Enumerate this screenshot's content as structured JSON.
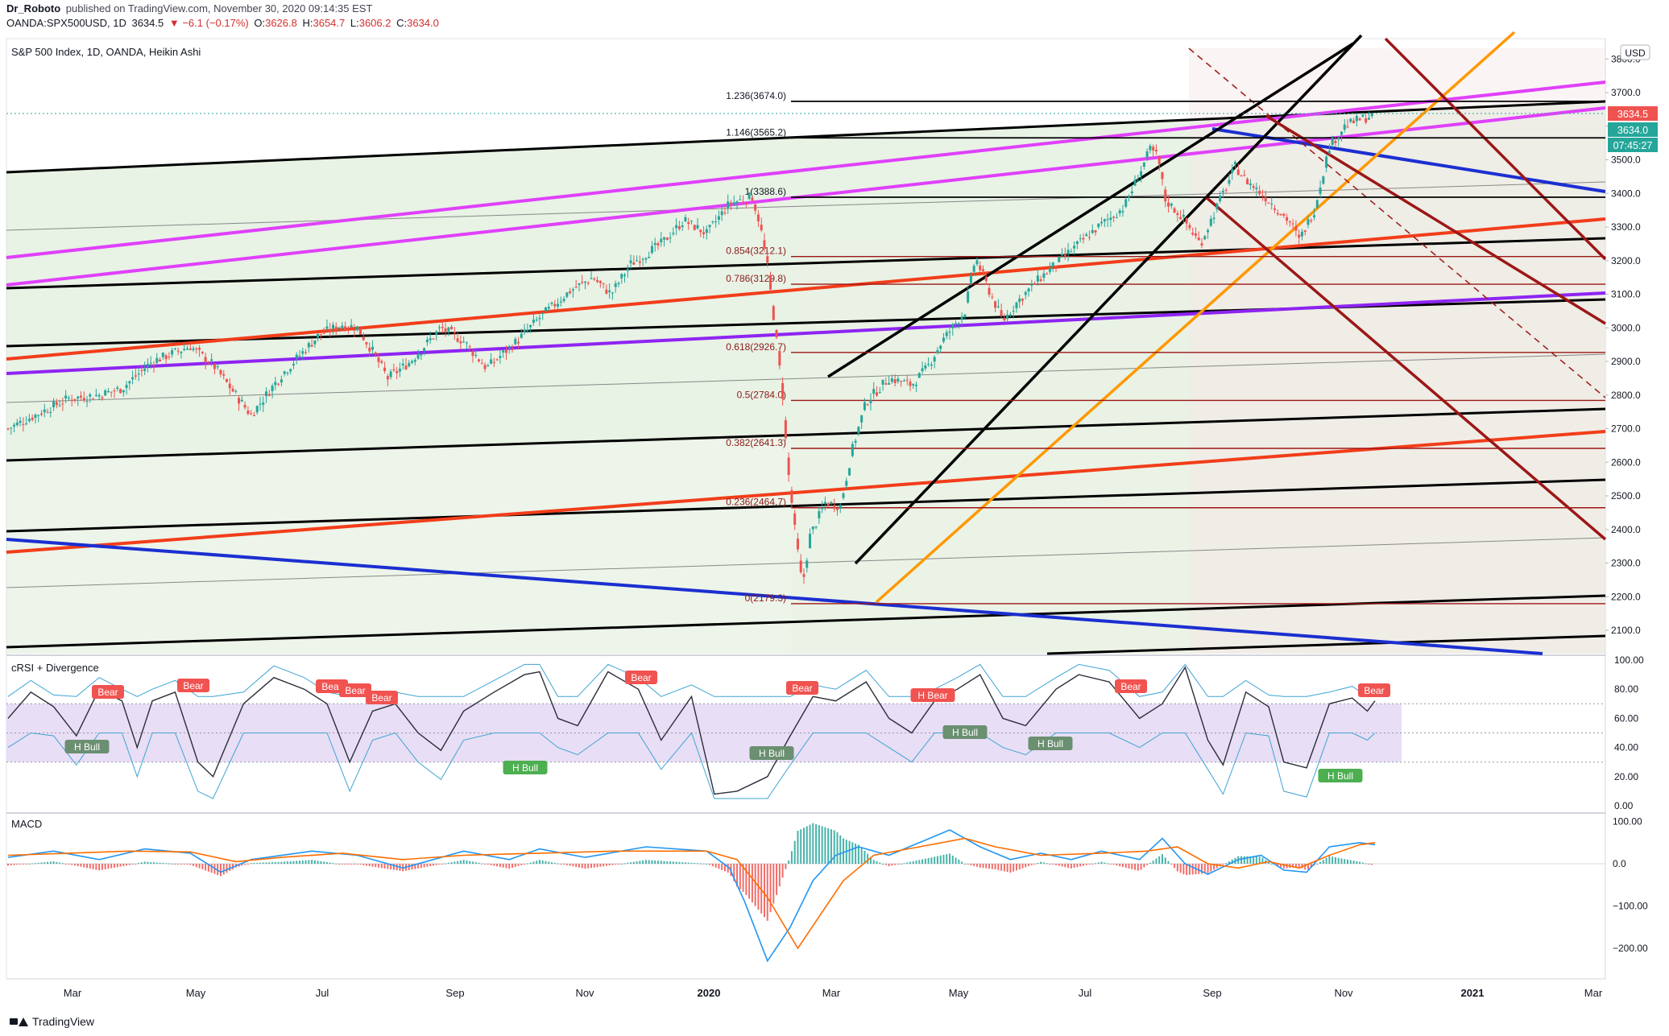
{
  "header": {
    "user": "Dr_Roboto",
    "published": "published on TradingView.com, November 30, 2020 09:14:35 EST",
    "symbol": "OANDA:SPX500USD, 1D",
    "last": "3634.5",
    "change": "▼ −6.1 (−0.17%)",
    "o_label": "O:",
    "o": "3626.8",
    "h_label": "H:",
    "h": "3654.7",
    "l_label": "L:",
    "l": "3606.2",
    "c_label": "C:",
    "c": "3634.0"
  },
  "legend": {
    "main": "S&P 500 Index, 1D, OANDA, Heikin Ashi",
    "crsi": "cRSI + Divergence",
    "macd": "MACD"
  },
  "currency": "USD",
  "price_tags": {
    "last": "3634.5",
    "close": "3634.0",
    "countdown": "07:45:27"
  },
  "colors": {
    "up": "#26a69a",
    "down": "#ef5350",
    "magenta": "#e040fb",
    "red": "#f23d1a",
    "purple": "#8e24f2",
    "blue": "#1b2fd1",
    "orange": "#ff9800",
    "darkred": "#9c1717",
    "channel_fill": "#d6e7cf",
    "crsi_band": "#e2d6f2",
    "bear": "#f05350",
    "bull": "#4caf50"
  },
  "footer": {
    "brand": "TradingView"
  },
  "chart_data": [
    {
      "type": "candlestick",
      "title": "S&P 500 Index, 1D, OANDA, Heikin Ashi",
      "x_ticks": [
        "Mar",
        "May",
        "Jul",
        "Sep",
        "Nov",
        "2020",
        "Mar",
        "May",
        "Jul",
        "Sep",
        "Nov",
        "2021",
        "Mar"
      ],
      "y_ticks": [
        "2100.0",
        "2200.0",
        "2300.0",
        "2400.0",
        "2500.0",
        "2600.0",
        "2700.0",
        "2800.0",
        "2900.0",
        "3000.0",
        "3100.0",
        "3200.0",
        "3300.0",
        "3400.0",
        "3500.0",
        "3600.0",
        "3700.0",
        "3800.0"
      ],
      "ylim": [
        2055,
        3890
      ],
      "fib_levels": [
        {
          "label": "1.236(3674.0)",
          "value": 3674.0
        },
        {
          "label": "1.146(3565.2)",
          "value": 3565.2
        },
        {
          "label": "1(3388.6)",
          "value": 3388.6
        },
        {
          "label": "0.854(3212.1)",
          "value": 3212.1
        },
        {
          "label": "0.786(3129.8)",
          "value": 3129.8
        },
        {
          "label": "0.618(2926.7)",
          "value": 2926.7
        },
        {
          "label": "0.5(2784.0)",
          "value": 2784.0
        },
        {
          "label": "0.382(2641.3)",
          "value": 2641.3
        },
        {
          "label": "0.236(2464.7)",
          "value": 2464.7
        },
        {
          "label": "0(2179.3)",
          "value": 2179.3
        }
      ],
      "close_path": [
        [
          0,
          2700
        ],
        [
          40,
          2790
        ],
        [
          60,
          2800
        ],
        [
          75,
          2820
        ],
        [
          95,
          2900
        ],
        [
          120,
          2945
        ],
        [
          135,
          2890
        ],
        [
          160,
          2740
        ],
        [
          180,
          2860
        ],
        [
          205,
          2980
        ],
        [
          220,
          3010
        ],
        [
          230,
          3000
        ],
        [
          240,
          2930
        ],
        [
          250,
          2850
        ],
        [
          265,
          2900
        ],
        [
          285,
          3000
        ],
        [
          300,
          2960
        ],
        [
          315,
          2880
        ],
        [
          335,
          2960
        ],
        [
          350,
          3030
        ],
        [
          370,
          3110
        ],
        [
          385,
          3150
        ],
        [
          397,
          3100
        ],
        [
          410,
          3190
        ],
        [
          430,
          3250
        ],
        [
          445,
          3320
        ],
        [
          460,
          3280
        ],
        [
          475,
          3370
        ],
        [
          490,
          3390
        ],
        [
          495,
          3310
        ],
        [
          500,
          3180
        ],
        [
          505,
          3000
        ],
        [
          510,
          2800
        ],
        [
          513,
          2600
        ],
        [
          518,
          2400
        ],
        [
          523,
          2230
        ],
        [
          528,
          2380
        ],
        [
          538,
          2480
        ],
        [
          548,
          2470
        ],
        [
          556,
          2640
        ],
        [
          565,
          2780
        ],
        [
          580,
          2850
        ],
        [
          595,
          2830
        ],
        [
          605,
          2880
        ],
        [
          615,
          2960
        ],
        [
          630,
          3050
        ],
        [
          637,
          3210
        ],
        [
          645,
          3120
        ],
        [
          655,
          3020
        ],
        [
          665,
          3080
        ],
        [
          680,
          3150
        ],
        [
          695,
          3210
        ],
        [
          715,
          3290
        ],
        [
          735,
          3360
        ],
        [
          752,
          3530
        ],
        [
          757,
          3510
        ],
        [
          762,
          3380
        ],
        [
          773,
          3330
        ],
        [
          785,
          3250
        ],
        [
          800,
          3400
        ],
        [
          808,
          3480
        ],
        [
          815,
          3440
        ],
        [
          830,
          3380
        ],
        [
          845,
          3310
        ],
        [
          850,
          3260
        ],
        [
          860,
          3350
        ],
        [
          870,
          3540
        ],
        [
          880,
          3600
        ],
        [
          890,
          3620
        ],
        [
          900,
          3634
        ]
      ],
      "series_note_none": ""
    },
    {
      "type": "line",
      "title": "cRSI + Divergence",
      "y_ticks": [
        "100.00",
        "80.00",
        "60.00",
        "40.00",
        "20.00",
        "0.00"
      ],
      "ylim": [
        0,
        100
      ],
      "band": [
        30,
        70
      ],
      "crsi_path": [
        [
          0,
          60
        ],
        [
          15,
          78
        ],
        [
          30,
          68
        ],
        [
          45,
          48
        ],
        [
          60,
          80
        ],
        [
          75,
          72
        ],
        [
          85,
          40
        ],
        [
          95,
          72
        ],
        [
          110,
          78
        ],
        [
          125,
          30
        ],
        [
          135,
          20
        ],
        [
          155,
          70
        ],
        [
          175,
          88
        ],
        [
          195,
          80
        ],
        [
          210,
          70
        ],
        [
          225,
          30
        ],
        [
          240,
          65
        ],
        [
          255,
          70
        ],
        [
          270,
          50
        ],
        [
          285,
          38
        ],
        [
          300,
          65
        ],
        [
          320,
          78
        ],
        [
          340,
          90
        ],
        [
          350,
          92
        ],
        [
          362,
          60
        ],
        [
          375,
          55
        ],
        [
          395,
          92
        ],
        [
          415,
          80
        ],
        [
          430,
          45
        ],
        [
          450,
          75
        ],
        [
          465,
          8
        ],
        [
          480,
          10
        ],
        [
          500,
          20
        ],
        [
          515,
          48
        ],
        [
          530,
          75
        ],
        [
          545,
          72
        ],
        [
          565,
          85
        ],
        [
          580,
          60
        ],
        [
          595,
          50
        ],
        [
          610,
          72
        ],
        [
          625,
          80
        ],
        [
          640,
          90
        ],
        [
          655,
          60
        ],
        [
          670,
          55
        ],
        [
          690,
          80
        ],
        [
          705,
          90
        ],
        [
          725,
          85
        ],
        [
          745,
          60
        ],
        [
          760,
          70
        ],
        [
          775,
          95
        ],
        [
          790,
          45
        ],
        [
          800,
          28
        ],
        [
          815,
          78
        ],
        [
          830,
          68
        ],
        [
          840,
          30
        ],
        [
          855,
          26
        ],
        [
          870,
          70
        ],
        [
          885,
          74
        ],
        [
          895,
          65
        ],
        [
          900,
          72
        ]
      ],
      "labels": [
        {
          "text": "Bear",
          "kind": "bear"
        },
        {
          "text": "Bear",
          "kind": "bear"
        },
        {
          "text": "Bear",
          "kind": "bear"
        },
        {
          "text": "Bear",
          "kind": "bear"
        },
        {
          "text": "Bear",
          "kind": "bear"
        },
        {
          "text": "Bear",
          "kind": "bear"
        },
        {
          "text": "Bear",
          "kind": "bear"
        },
        {
          "text": "H Bear",
          "kind": "bear"
        },
        {
          "text": "Bear",
          "kind": "bear"
        },
        {
          "text": "Bear",
          "kind": "bear"
        },
        {
          "text": "H Bull",
          "kind": "hbull"
        },
        {
          "text": "H Bull",
          "kind": "bull"
        },
        {
          "text": "H Bull",
          "kind": "hbull"
        },
        {
          "text": "H Bull",
          "kind": "hbull"
        },
        {
          "text": "H Bull",
          "kind": "hbull"
        },
        {
          "text": "H Bull",
          "kind": "bull"
        }
      ]
    },
    {
      "type": "line",
      "title": "MACD",
      "y_ticks": [
        "100.00",
        "0.0",
        "−100.00",
        "−200.00"
      ],
      "ylim": [
        -250,
        110
      ],
      "macd_path": [
        [
          0,
          15
        ],
        [
          30,
          30
        ],
        [
          60,
          10
        ],
        [
          90,
          35
        ],
        [
          120,
          25
        ],
        [
          140,
          -20
        ],
        [
          160,
          10
        ],
        [
          200,
          30
        ],
        [
          230,
          20
        ],
        [
          260,
          -10
        ],
        [
          300,
          30
        ],
        [
          330,
          10
        ],
        [
          350,
          35
        ],
        [
          380,
          15
        ],
        [
          420,
          40
        ],
        [
          460,
          30
        ],
        [
          475,
          -10
        ],
        [
          485,
          -90
        ],
        [
          500,
          -230
        ],
        [
          515,
          -150
        ],
        [
          530,
          -40
        ],
        [
          545,
          20
        ],
        [
          560,
          40
        ],
        [
          580,
          20
        ],
        [
          600,
          50
        ],
        [
          620,
          80
        ],
        [
          640,
          40
        ],
        [
          660,
          10
        ],
        [
          680,
          25
        ],
        [
          700,
          10
        ],
        [
          720,
          30
        ],
        [
          745,
          10
        ],
        [
          760,
          60
        ],
        [
          775,
          0
        ],
        [
          790,
          -25
        ],
        [
          810,
          10
        ],
        [
          825,
          20
        ],
        [
          840,
          -15
        ],
        [
          855,
          -20
        ],
        [
          870,
          40
        ],
        [
          890,
          50
        ],
        [
          900,
          45
        ]
      ],
      "signal_path": [
        [
          0,
          20
        ],
        [
          40,
          25
        ],
        [
          80,
          30
        ],
        [
          120,
          28
        ],
        [
          150,
          5
        ],
        [
          180,
          15
        ],
        [
          220,
          25
        ],
        [
          260,
          10
        ],
        [
          300,
          20
        ],
        [
          350,
          25
        ],
        [
          400,
          30
        ],
        [
          460,
          30
        ],
        [
          480,
          10
        ],
        [
          500,
          -80
        ],
        [
          520,
          -200
        ],
        [
          535,
          -120
        ],
        [
          550,
          -40
        ],
        [
          570,
          20
        ],
        [
          600,
          40
        ],
        [
          630,
          60
        ],
        [
          650,
          40
        ],
        [
          680,
          20
        ],
        [
          720,
          25
        ],
        [
          750,
          30
        ],
        [
          770,
          40
        ],
        [
          790,
          0
        ],
        [
          810,
          -10
        ],
        [
          830,
          5
        ],
        [
          850,
          -10
        ],
        [
          870,
          20
        ],
        [
          890,
          45
        ],
        [
          900,
          50
        ]
      ]
    }
  ]
}
